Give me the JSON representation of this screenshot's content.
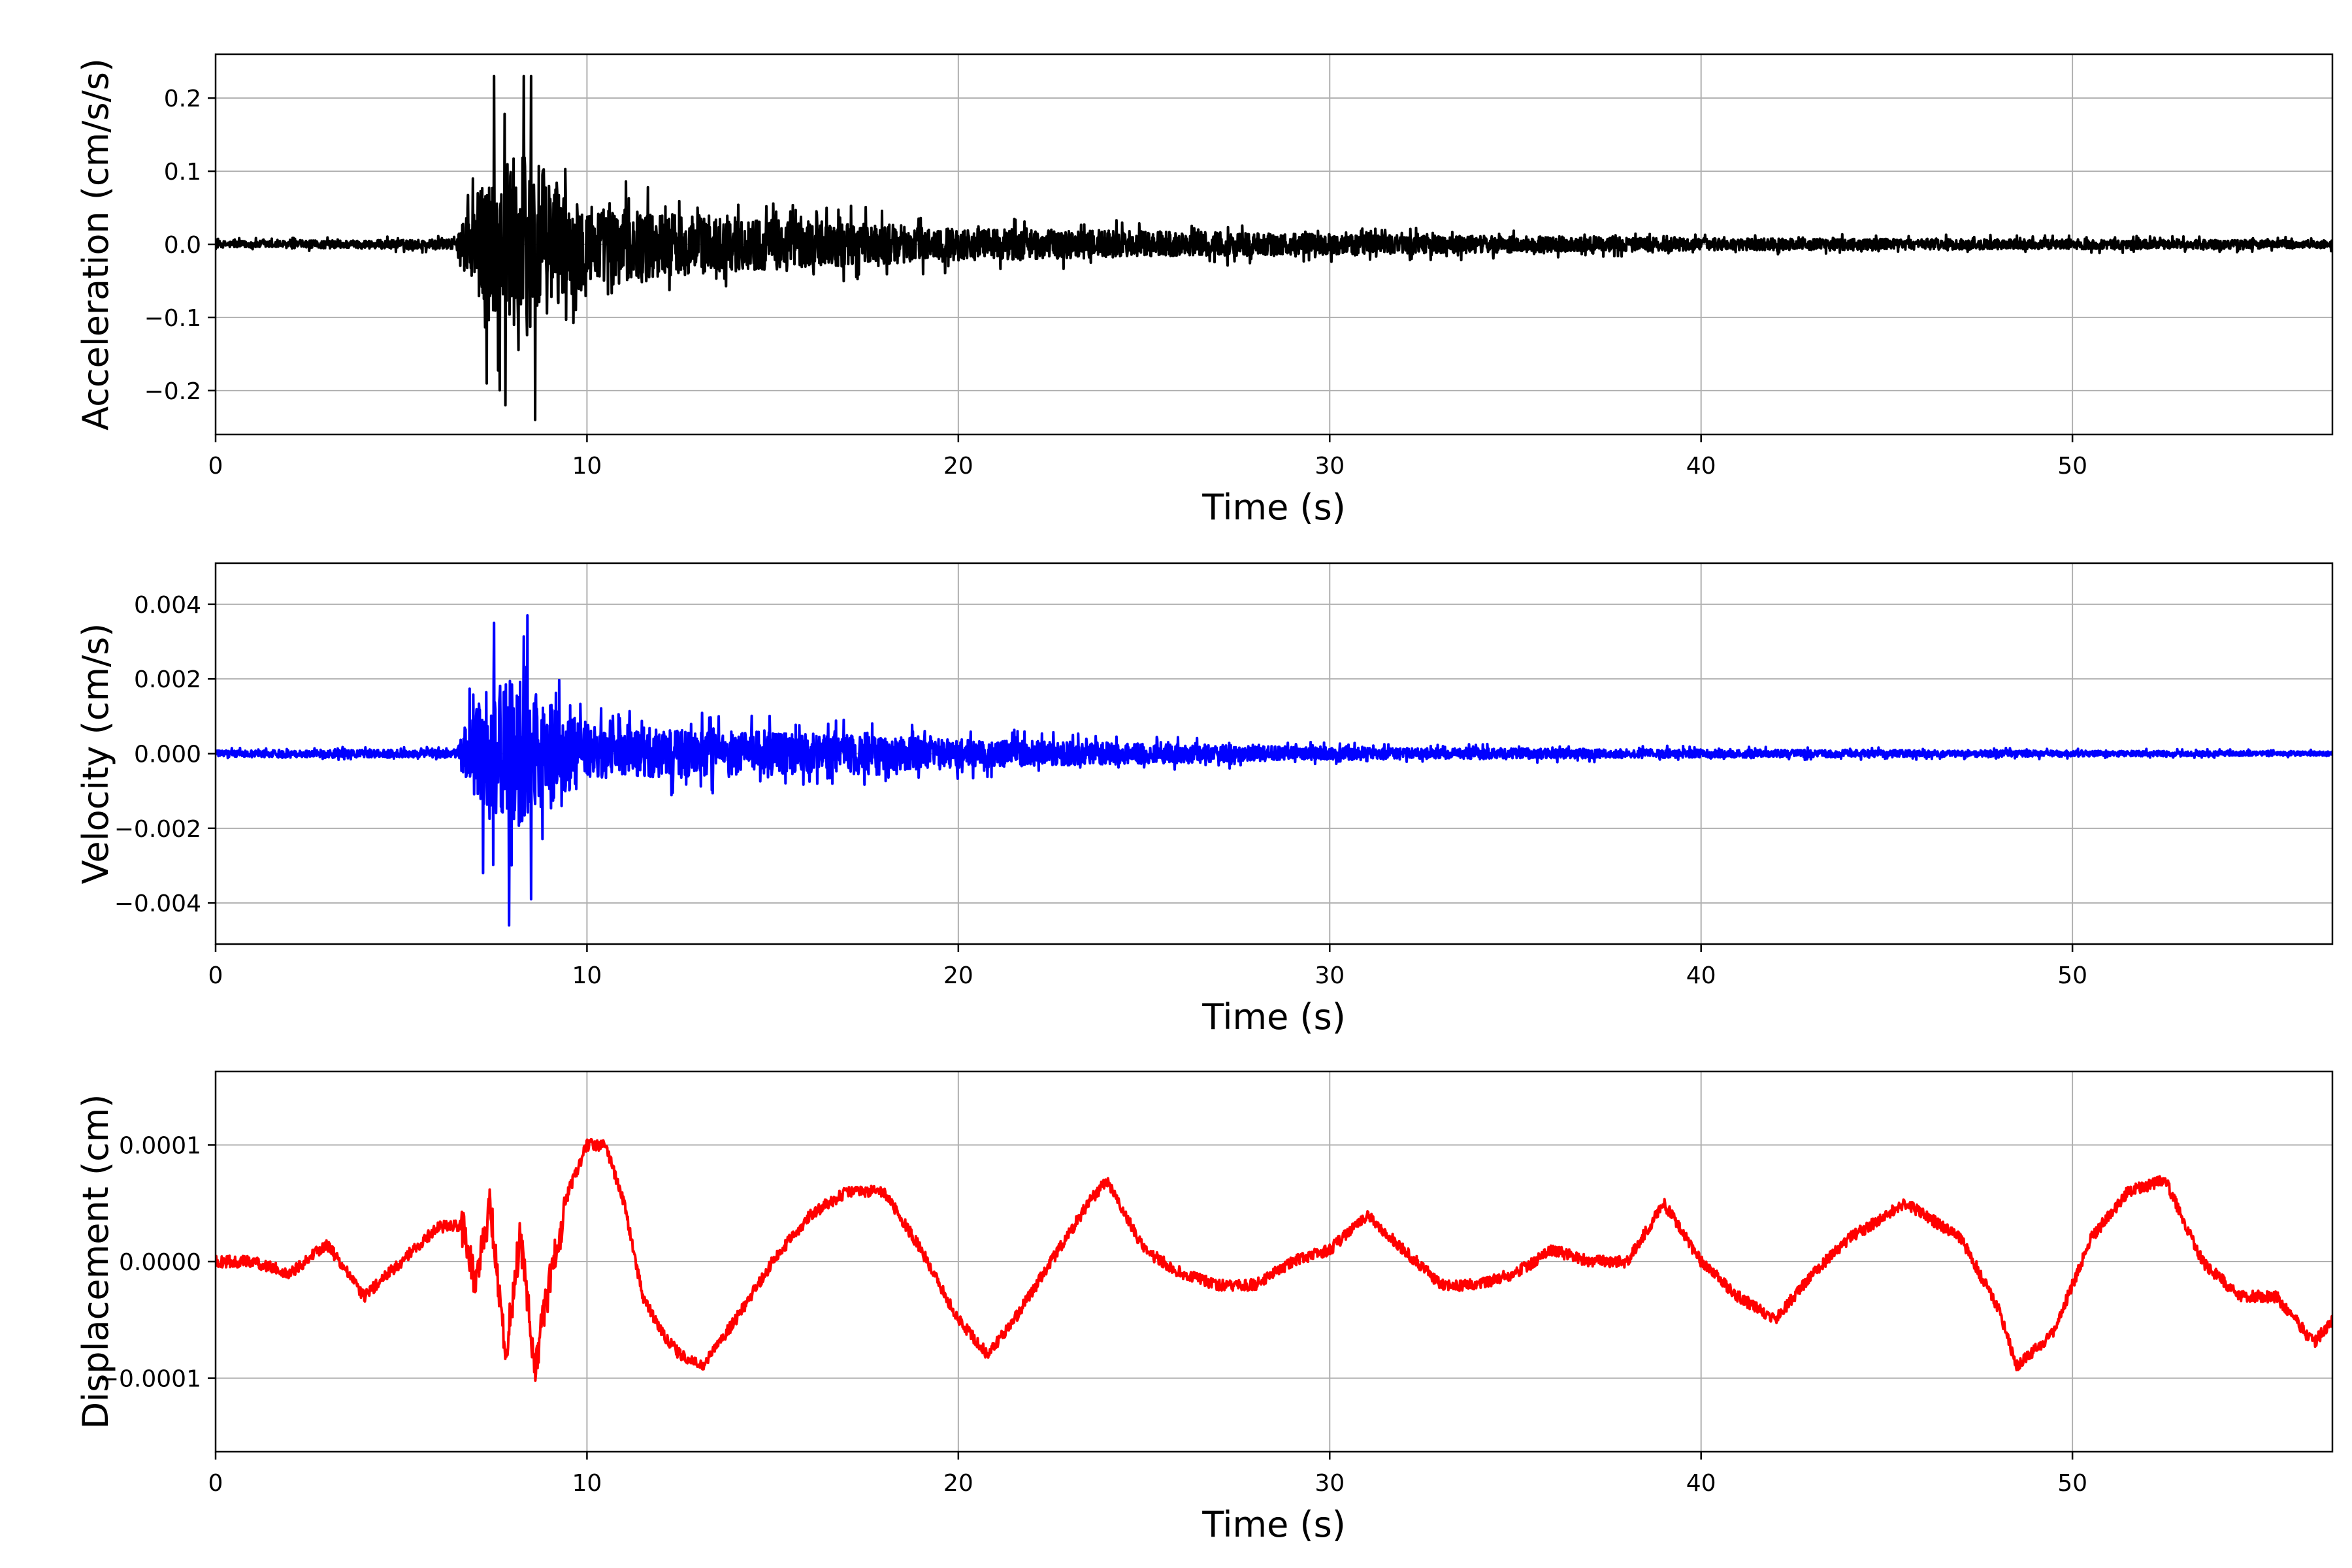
{
  "chart_data": [
    {
      "type": "line",
      "color": "#000000",
      "xlabel": "Time (s)",
      "ylabel": "Acceleration (cm/s/s)",
      "xlim": [
        0,
        57
      ],
      "ylim": [
        -0.26,
        0.26
      ],
      "grid": true,
      "xticks": [
        0,
        10,
        20,
        30,
        40,
        50
      ],
      "xtick_labels": [
        "0",
        "10",
        "20",
        "30",
        "40",
        "50"
      ],
      "yticks": [
        -0.2,
        -0.1,
        0.0,
        0.1,
        0.2
      ],
      "ytick_labels": [
        "−0.2",
        "−0.1",
        "0.0",
        "0.1",
        "0.2"
      ],
      "envelope": [
        {
          "t": 0,
          "a": 0.008
        },
        {
          "t": 6.5,
          "a": 0.012
        },
        {
          "t": 6.8,
          "a": 0.1
        },
        {
          "t": 7.6,
          "a": 0.2
        },
        {
          "t": 8.4,
          "a": 0.23
        },
        {
          "t": 9.3,
          "a": 0.14
        },
        {
          "t": 10.5,
          "a": 0.09
        },
        {
          "t": 13.5,
          "a": 0.07
        },
        {
          "t": 20,
          "a": 0.04
        },
        {
          "t": 30,
          "a": 0.025
        },
        {
          "t": 40,
          "a": 0.015
        },
        {
          "t": 57,
          "a": 0.01
        }
      ],
      "peaks": [
        {
          "t": 7.5,
          "y": 0.23
        },
        {
          "t": 7.8,
          "y": -0.22
        },
        {
          "t": 8.3,
          "y": 0.23
        },
        {
          "t": 8.5,
          "y": 0.23
        },
        {
          "t": 8.6,
          "y": -0.24
        },
        {
          "t": 7.3,
          "y": -0.19
        }
      ]
    },
    {
      "type": "line",
      "color": "#0000ff",
      "xlabel": "Time (s)",
      "ylabel": "Velocity (cm/s)",
      "xlim": [
        0,
        57
      ],
      "ylim": [
        -0.0051,
        0.0051
      ],
      "grid": true,
      "xticks": [
        0,
        10,
        20,
        30,
        40,
        50
      ],
      "xtick_labels": [
        "0",
        "10",
        "20",
        "30",
        "40",
        "50"
      ],
      "yticks": [
        -0.004,
        -0.002,
        0.0,
        0.002,
        0.004
      ],
      "ytick_labels": [
        "−0.004",
        "−0.002",
        "0.000",
        "0.002",
        "0.004"
      ],
      "envelope": [
        {
          "t": 0,
          "a": 0.00015
        },
        {
          "t": 6.5,
          "a": 0.0002
        },
        {
          "t": 6.8,
          "a": 0.0018
        },
        {
          "t": 7.5,
          "a": 0.0035
        },
        {
          "t": 8.4,
          "a": 0.0036
        },
        {
          "t": 9.3,
          "a": 0.002
        },
        {
          "t": 10.5,
          "a": 0.0012
        },
        {
          "t": 14,
          "a": 0.0011
        },
        {
          "t": 20,
          "a": 0.0007
        },
        {
          "t": 30,
          "a": 0.0003
        },
        {
          "t": 40,
          "a": 0.0002
        },
        {
          "t": 57,
          "a": 0.0001
        }
      ],
      "peaks": [
        {
          "t": 7.5,
          "y": 0.0035
        },
        {
          "t": 7.9,
          "y": -0.0046
        },
        {
          "t": 8.4,
          "y": 0.0037
        },
        {
          "t": 8.5,
          "y": -0.0039
        },
        {
          "t": 7.2,
          "y": -0.0032
        }
      ]
    },
    {
      "type": "line",
      "color": "#ff0000",
      "xlabel": "Time (s)",
      "ylabel": "Displacement (cm)",
      "xlim": [
        0,
        57
      ],
      "ylim": [
        -0.000163,
        0.000163
      ],
      "grid": true,
      "xticks": [
        0,
        10,
        20,
        30,
        40,
        50
      ],
      "xtick_labels": [
        "0",
        "10",
        "20",
        "30",
        "40",
        "50"
      ],
      "yticks": [
        -0.0001,
        0.0,
        0.0001
      ],
      "ytick_labels": [
        "−0.0001",
        "0.0000",
        "0.0001"
      ],
      "x": [
        0,
        1,
        2,
        3,
        4,
        5,
        6,
        6.7,
        7.0,
        7.4,
        7.8,
        8.2,
        8.6,
        9.1,
        9.5,
        10,
        10.5,
        11,
        11.5,
        12,
        12.5,
        13.1,
        14,
        15,
        16,
        17,
        18,
        19,
        20,
        20.8,
        21.5,
        22.5,
        23.5,
        24,
        25,
        26,
        27,
        28,
        29,
        30,
        31,
        32,
        33,
        34,
        35,
        36,
        37,
        38,
        39,
        40,
        41,
        42,
        43,
        44,
        45.5,
        47,
        48,
        48.5,
        49.5,
        50.5,
        51.5,
        52.5,
        53.5,
        54.5,
        55.5,
        56.5,
        57
      ],
      "y": [
        0.0,
        0.0,
        -1e-05,
        1.5e-05,
        -3e-05,
        0.0,
        3e-05,
        3e-05,
        -2e-05,
        5e-05,
        -8e-05,
        2e-05,
        -9e-05,
        0.0,
        6e-05,
        0.0001,
        0.0001,
        5e-05,
        -3e-05,
        -6e-05,
        -8e-05,
        -9e-05,
        -5e-05,
        0.0,
        4e-05,
        6e-05,
        6e-05,
        1e-05,
        -5e-05,
        -8e-05,
        -5e-05,
        0.0,
        5e-05,
        7e-05,
        1e-05,
        -1e-05,
        -2e-05,
        -2e-05,
        0.0,
        1e-05,
        4e-05,
        1e-05,
        -2e-05,
        -2e-05,
        -1e-05,
        1e-05,
        0.0,
        0.0,
        5e-05,
        0.0,
        -3e-05,
        -5e-05,
        -1e-05,
        2e-05,
        5e-05,
        2e-05,
        -4e-05,
        -9e-05,
        -6e-05,
        2e-05,
        6e-05,
        7e-05,
        0.0,
        -3e-05,
        -3e-05,
        -7e-05,
        -5e-05
      ],
      "noise": 5e-06
    }
  ]
}
